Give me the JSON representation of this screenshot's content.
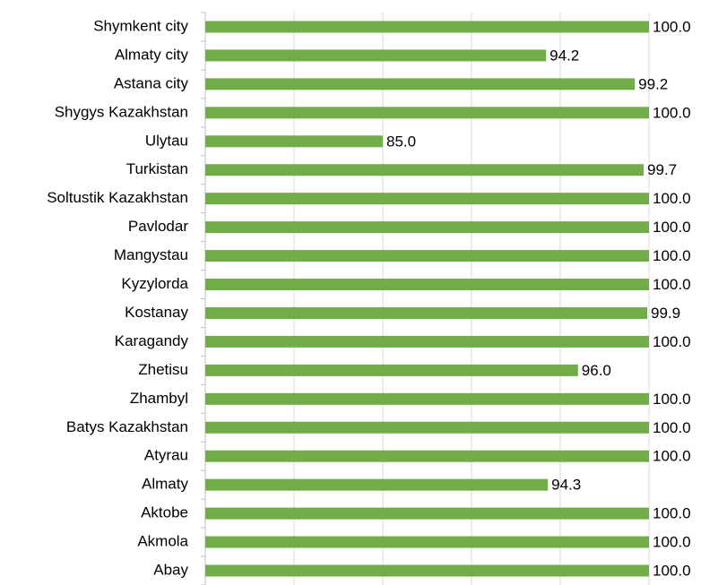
{
  "chart_data": {
    "type": "barh",
    "categories": [
      "Shymkent city",
      "Almaty city",
      "Astana city",
      "Shygys Kazakhstan",
      "Ulytau",
      "Turkistan",
      "Soltustik Kazakhstan",
      "Pavlodar",
      "Mangystau",
      "Kyzylorda",
      "Kostanay",
      "Karagandy",
      "Zhetisu",
      "Zhambyl",
      "Batys Kazakhstan",
      "Atyrau",
      "Almaty",
      "Aktobe",
      "Akmola",
      "Abay"
    ],
    "values": [
      100,
      94.2,
      99.2,
      100,
      85,
      99.7,
      100,
      100,
      100,
      100,
      99.9,
      100,
      96,
      100,
      100,
      100,
      94.3,
      100,
      100,
      100
    ],
    "value_labels": [
      "100.0",
      "94.2",
      "99.2",
      "100.0",
      "85.0",
      "99.7",
      "100.0",
      "100.0",
      "100.0",
      "100.0",
      "99.9",
      "100.0",
      "96.0",
      "100.0",
      "100.0",
      "100.0",
      "94.3",
      "100.0",
      "100.0",
      "100.0"
    ],
    "color": "#70ad47",
    "xlim": [
      75,
      100
    ],
    "xticks": [
      75,
      80,
      85,
      90,
      95,
      100
    ],
    "grid": true
  }
}
